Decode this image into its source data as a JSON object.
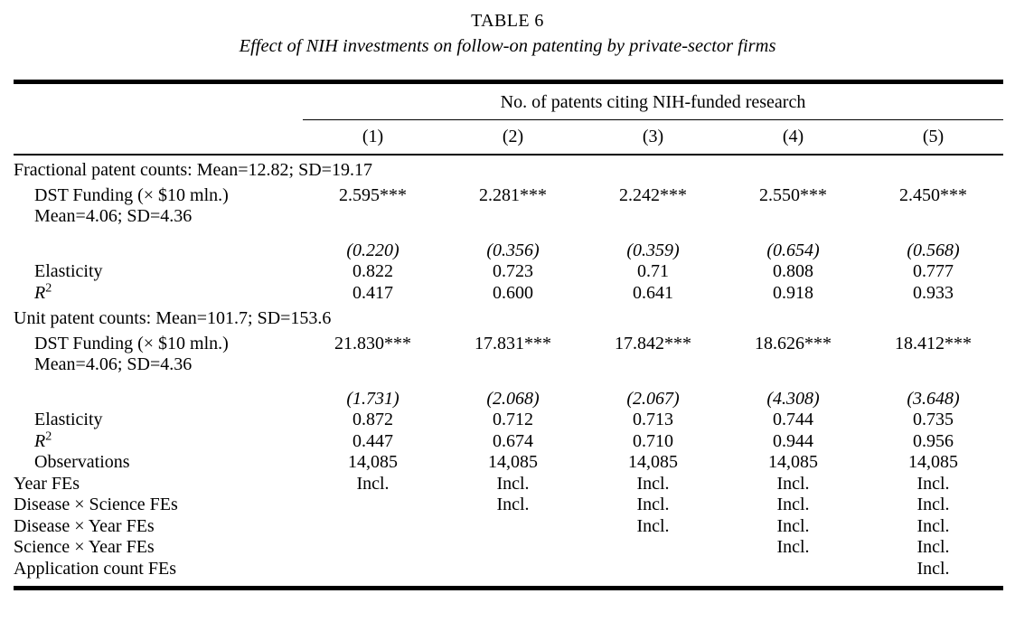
{
  "page": {
    "background": "#ffffff",
    "text_color": "#000000"
  },
  "table": {
    "caption": "TABLE 6",
    "subtitle": "Effect of NIH investments on follow-on patenting by private-sector firms",
    "spanner": "No. of patents citing NIH-funded research",
    "column_headers": [
      "(1)",
      "(2)",
      "(3)",
      "(4)",
      "(5)"
    ],
    "body_rows": [
      {
        "type": "panel",
        "label": "Fractional patent counts: Mean=12.82; SD=19.17"
      },
      {
        "type": "coef",
        "indent": true,
        "label": "DST Funding (× $10 mln.)",
        "label_line2": "Mean=4.06; SD=4.36",
        "values": [
          "2.595***",
          "2.281***",
          "2.242***",
          "2.550***",
          "2.450***"
        ]
      },
      {
        "type": "se",
        "indent": true,
        "spacer_above": true,
        "label": "",
        "values": [
          "(0.220)",
          "(0.356)",
          "(0.359)",
          "(0.654)",
          "(0.568)"
        ]
      },
      {
        "type": "data",
        "indent": true,
        "label": "Elasticity",
        "values": [
          "0.822",
          "0.723",
          "0.71",
          "0.808",
          "0.777"
        ]
      },
      {
        "type": "data",
        "indent": true,
        "label": "R",
        "label_sup": "2",
        "label_italic": true,
        "values": [
          "0.417",
          "0.600",
          "0.641",
          "0.918",
          "0.933"
        ]
      },
      {
        "type": "panel",
        "label": "Unit patent counts: Mean=101.7; SD=153.6"
      },
      {
        "type": "coef",
        "indent": true,
        "label": "DST Funding (× $10 mln.)",
        "label_line2": "Mean=4.06; SD=4.36",
        "values": [
          "21.830***",
          "17.831***",
          "17.842***",
          "18.626***",
          "18.412***"
        ]
      },
      {
        "type": "se",
        "indent": true,
        "spacer_above": true,
        "label": "",
        "values": [
          "(1.731)",
          "(2.068)",
          "(2.067)",
          "(4.308)",
          "(3.648)"
        ]
      },
      {
        "type": "data",
        "indent": true,
        "label": "Elasticity",
        "values": [
          "0.872",
          "0.712",
          "0.713",
          "0.744",
          "0.735"
        ]
      },
      {
        "type": "data",
        "indent": true,
        "label": "R",
        "label_sup": "2",
        "label_italic": true,
        "values": [
          "0.447",
          "0.674",
          "0.710",
          "0.944",
          "0.956"
        ]
      },
      {
        "type": "data",
        "indent": true,
        "label": "Observations",
        "values": [
          "14,085",
          "14,085",
          "14,085",
          "14,085",
          "14,085"
        ]
      },
      {
        "type": "data",
        "label": "Year FEs",
        "values": [
          "Incl.",
          "Incl.",
          "Incl.",
          "Incl.",
          "Incl."
        ]
      },
      {
        "type": "data",
        "label": "Disease × Science FEs",
        "values": [
          "",
          "Incl.",
          "Incl.",
          "Incl.",
          "Incl."
        ]
      },
      {
        "type": "data",
        "label": "Disease × Year FEs",
        "values": [
          "",
          "",
          "Incl.",
          "Incl.",
          "Incl."
        ]
      },
      {
        "type": "data",
        "label": "Science × Year FEs",
        "values": [
          "",
          "",
          "",
          "Incl.",
          "Incl."
        ]
      },
      {
        "type": "data",
        "label": "Application count FEs",
        "values": [
          "",
          "",
          "",
          "",
          "Incl."
        ]
      }
    ]
  }
}
